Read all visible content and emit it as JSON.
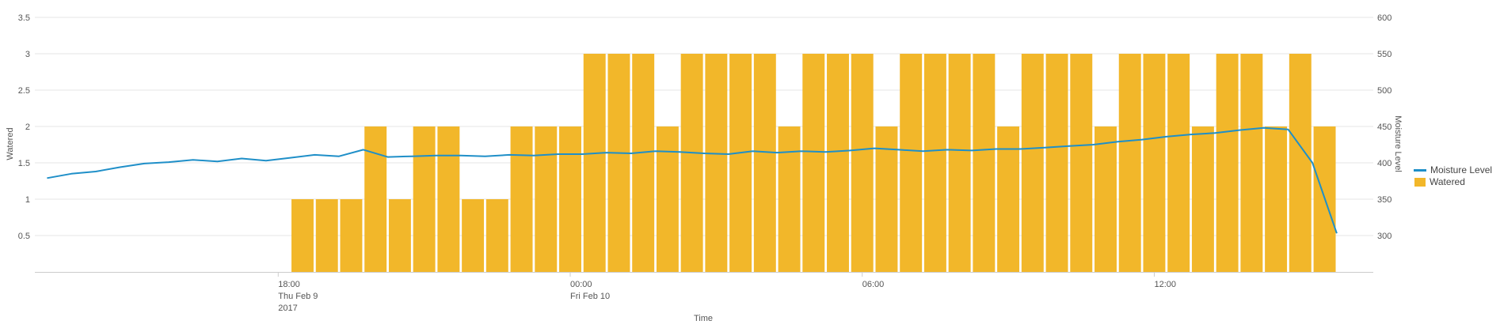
{
  "chart_data": {
    "type": "bar+line",
    "colors": {
      "bar": "#f2b72a",
      "line": "#1f8fc8",
      "grid": "#e6e6e6",
      "axis": "#cccccc"
    },
    "xlabel": "Time",
    "ylabel_left": "Watered",
    "ylabel_right": "Moisture Level",
    "y_left": {
      "min": 0,
      "max": 3.5,
      "ticks": [
        "0.5",
        "1",
        "1.5",
        "2",
        "2.5",
        "3",
        "3.5"
      ]
    },
    "y_right": {
      "min": 250,
      "max": 600,
      "ticks": [
        "300",
        "350",
        "400",
        "450",
        "500",
        "550",
        "600"
      ]
    },
    "x_ticks": [
      {
        "hours": 18,
        "label": "18:00",
        "sub1": "Thu Feb 9",
        "sub2": "2017"
      },
      {
        "hours": 24,
        "label": "00:00",
        "sub1": "Fri Feb 10",
        "sub2": ""
      },
      {
        "hours": 30,
        "label": "06:00",
        "sub1": "",
        "sub2": ""
      },
      {
        "hours": 36,
        "label": "12:00",
        "sub1": "",
        "sub2": ""
      }
    ],
    "x_range_hours": [
      13,
      40.5
    ],
    "series": [
      {
        "name": "Watered",
        "type": "bar",
        "start_hours": 18.5,
        "step_hours": 0.5,
        "values": [
          1,
          1,
          1,
          2,
          1,
          2,
          2,
          1,
          1,
          2,
          2,
          2,
          3,
          3,
          3,
          2,
          3,
          3,
          3,
          3,
          2,
          3,
          3,
          3,
          2,
          3,
          3,
          3,
          3,
          2,
          3,
          3,
          3,
          2,
          3,
          3,
          3,
          2,
          3,
          3,
          2,
          3,
          2
        ]
      },
      {
        "name": "Moisture Level",
        "type": "line",
        "start_hours": 13.25,
        "step_hours": 0.5,
        "values": [
          379,
          385,
          388,
          394,
          399,
          401,
          404,
          402,
          406,
          403,
          407,
          411,
          409,
          418,
          408,
          409,
          410,
          410,
          409,
          411,
          410,
          412,
          412,
          414,
          413,
          416,
          415,
          413,
          412,
          416,
          414,
          416,
          415,
          417,
          420,
          418,
          416,
          418,
          417,
          419,
          419,
          421,
          423,
          425,
          429,
          432,
          436,
          439,
          441,
          445,
          448,
          446,
          400,
          303
        ]
      }
    ],
    "legend": {
      "position": "right",
      "items": [
        "Moisture Level",
        "Watered"
      ]
    }
  }
}
